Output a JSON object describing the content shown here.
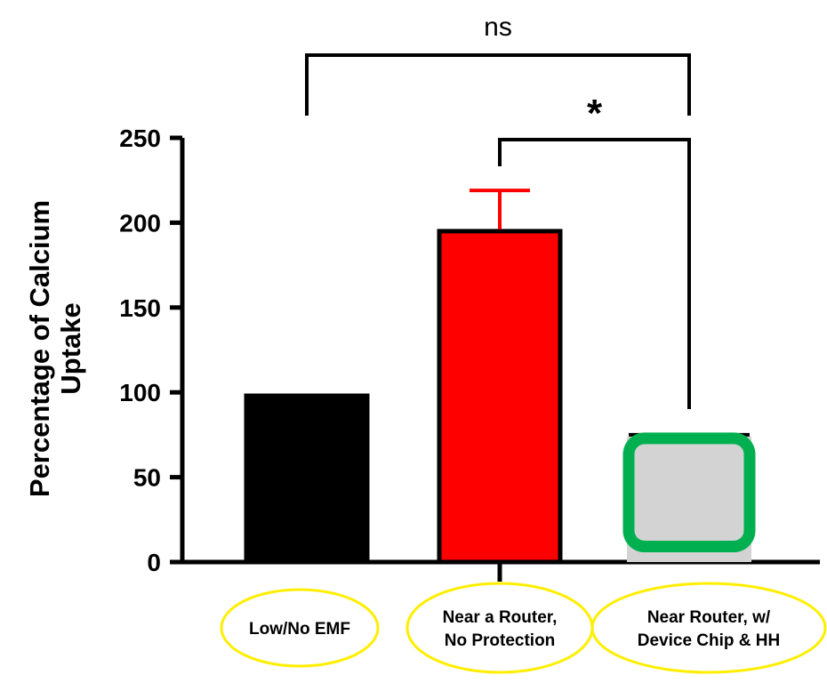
{
  "chart_data": {
    "type": "bar",
    "ylabel_line1": "Percentage of Calcium",
    "ylabel_line2": "Uptake",
    "ylim": [
      0,
      250
    ],
    "yticks": [
      "0",
      "50",
      "100",
      "150",
      "200",
      "250"
    ],
    "categories": [
      {
        "line1": "Low/No EMF",
        "line2": ""
      },
      {
        "line1": "Near a Router,",
        "line2": "No Protection"
      },
      {
        "line1": "Near Router, w/",
        "line2": "Device Chip & HH"
      }
    ],
    "values": [
      98,
      195,
      75
    ],
    "error_upper": [
      null,
      219,
      null
    ],
    "bar_fill": [
      "#000000",
      "#ff0000",
      "#d3d3d3"
    ],
    "bar_border": [
      "#000000",
      "#000000",
      "#00b050"
    ],
    "error_color": "#ff0000",
    "label_ellipse_color": "#ffee00",
    "significance": [
      {
        "from": 0,
        "to": 2,
        "label": "ns"
      },
      {
        "from": 1,
        "to": 2,
        "label": "*"
      }
    ]
  }
}
